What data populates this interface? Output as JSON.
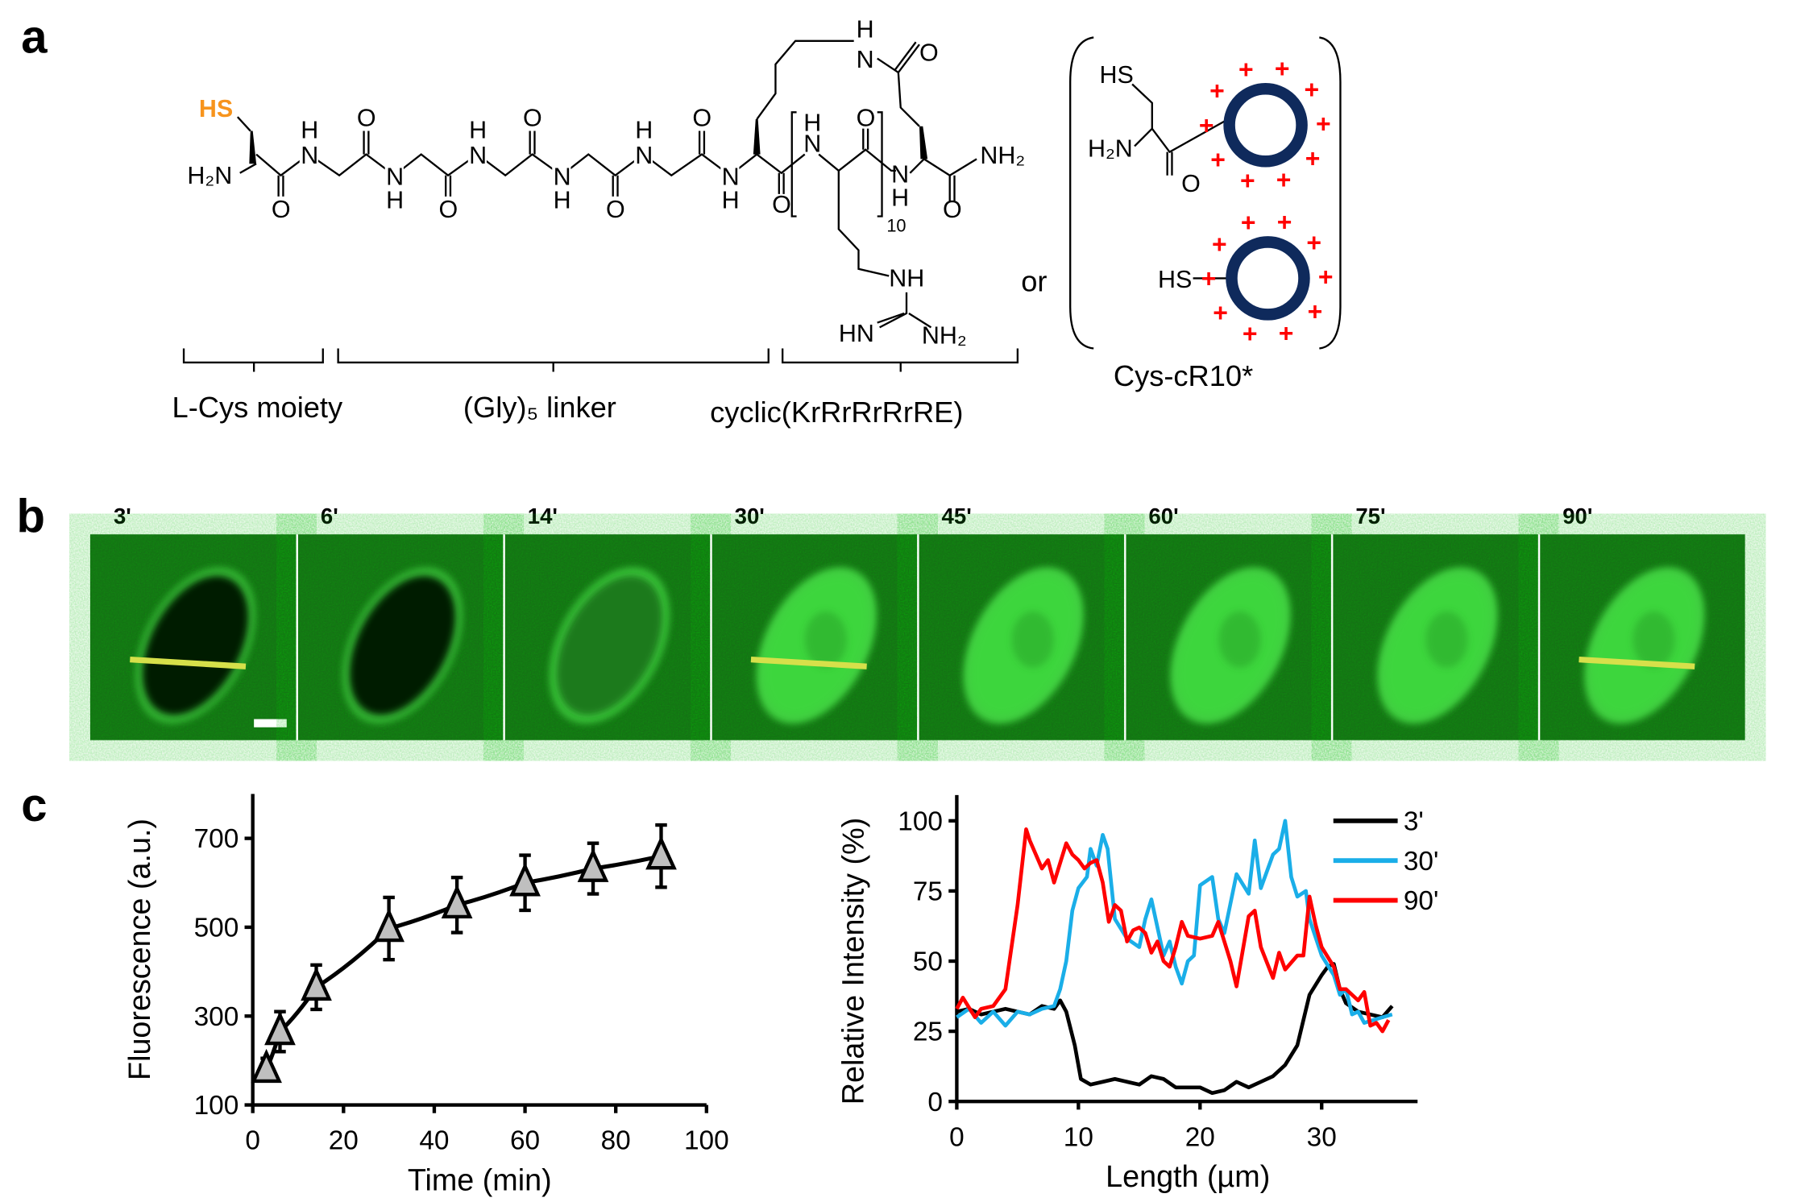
{
  "panels": {
    "a": "a",
    "b": "b",
    "c": "c"
  },
  "structure": {
    "thiol": "HS",
    "amine": "H₂N",
    "n": "N",
    "h": "H",
    "o": "O",
    "amide_terminal": "NH₂",
    "repeat": "10",
    "guanidine_nh": "NH",
    "guanidine_hn": "HN",
    "guanidine_nh2": "NH₂",
    "or": "or",
    "cys_cr10": "Cys-cR10*",
    "hs_alt": "HS",
    "h2n_alt": "H₂N",
    "o_alt": "O",
    "plus": "+",
    "segments": [
      "L-Cys moiety",
      "(Gly)₅ linker",
      "cyclic(KrRrRrRrRE)"
    ],
    "colors": {
      "thiol": "#f7941d",
      "ring": "#0f2a5c",
      "charge": "#ff0000"
    }
  },
  "microscopy": {
    "timepoints": [
      "3'",
      "6'",
      "14'",
      "30'",
      "45'",
      "60'",
      "75'",
      "90'"
    ],
    "cell_uptake": [
      0.0,
      0.05,
      0.3,
      0.7,
      0.8,
      0.85,
      0.9,
      0.9
    ],
    "line_profile_on": [
      "3'",
      "30'",
      "90'"
    ],
    "colors": {
      "background": "#176b17",
      "line": "#d6e04a",
      "scale_bar": "#ffffff"
    }
  },
  "chart_data": [
    {
      "type": "line",
      "title": "",
      "xlabel": "Time (min)",
      "ylabel": "Fluorescence (a.u.)",
      "xlim": [
        0,
        100
      ],
      "ylim": [
        100,
        800
      ],
      "xticks": [
        0,
        20,
        40,
        60,
        80,
        100
      ],
      "yticks": [
        100,
        300,
        500,
        700
      ],
      "grid": false,
      "series": [
        {
          "name": "fluorescence",
          "marker": "triangle",
          "x": [
            3,
            6,
            14,
            30,
            45,
            60,
            75,
            90
          ],
          "y": [
            180,
            265,
            365,
            497,
            550,
            600,
            632,
            660
          ],
          "error": [
            25,
            45,
            50,
            70,
            62,
            62,
            57,
            70
          ],
          "color": "#000000",
          "marker_fill": "#bfbfbf"
        }
      ]
    },
    {
      "type": "line",
      "title": "",
      "xlabel": "Length (µm)",
      "ylabel": "Relative Intensity (%)",
      "xlim": [
        0,
        38
      ],
      "ylim": [
        0,
        108
      ],
      "xticks": [
        0,
        10,
        20,
        30
      ],
      "yticks": [
        0,
        25,
        50,
        75,
        100
      ],
      "grid": false,
      "legend": "top-right",
      "series": [
        {
          "name": "3'",
          "color": "#000000",
          "points": [
            [
              0,
              32
            ],
            [
              1,
              33
            ],
            [
              2,
              31
            ],
            [
              3,
              32
            ],
            [
              4,
              33
            ],
            [
              5,
              32
            ],
            [
              6,
              31
            ],
            [
              7,
              34
            ],
            [
              8,
              33
            ],
            [
              8.5,
              36
            ],
            [
              9,
              32
            ],
            [
              9.7,
              20
            ],
            [
              10.2,
              8
            ],
            [
              11,
              6
            ],
            [
              12,
              7
            ],
            [
              13,
              8
            ],
            [
              14,
              7
            ],
            [
              15,
              6
            ],
            [
              16,
              9
            ],
            [
              17,
              8
            ],
            [
              18,
              5
            ],
            [
              19,
              5
            ],
            [
              20,
              5
            ],
            [
              21,
              3
            ],
            [
              22,
              4
            ],
            [
              23,
              7
            ],
            [
              24,
              5
            ],
            [
              25,
              7
            ],
            [
              26,
              9
            ],
            [
              27,
              13
            ],
            [
              28,
              20
            ],
            [
              29,
              38
            ],
            [
              30,
              45
            ],
            [
              30.5,
              48
            ],
            [
              31,
              49
            ],
            [
              31.5,
              40
            ],
            [
              32,
              35
            ],
            [
              33,
              32
            ],
            [
              34,
              31
            ],
            [
              35,
              30
            ],
            [
              35.8,
              34
            ]
          ]
        },
        {
          "name": "30'",
          "color": "#1aaee8",
          "points": [
            [
              0,
              30
            ],
            [
              1,
              33
            ],
            [
              2,
              28
            ],
            [
              3,
              32
            ],
            [
              4,
              27
            ],
            [
              5,
              32
            ],
            [
              6,
              31
            ],
            [
              7,
              33
            ],
            [
              8,
              34
            ],
            [
              8.5,
              40
            ],
            [
              9,
              50
            ],
            [
              9.5,
              68
            ],
            [
              10,
              76
            ],
            [
              10.7,
              80
            ],
            [
              11,
              90
            ],
            [
              11.5,
              84
            ],
            [
              12,
              95
            ],
            [
              12.4,
              90
            ],
            [
              13,
              65
            ],
            [
              14,
              58
            ],
            [
              15,
              55
            ],
            [
              15.5,
              65
            ],
            [
              16,
              72
            ],
            [
              17,
              52
            ],
            [
              17.5,
              57
            ],
            [
              18,
              48
            ],
            [
              18.5,
              42
            ],
            [
              19,
              50
            ],
            [
              19.5,
              52
            ],
            [
              20,
              77
            ],
            [
              21,
              80
            ],
            [
              21.5,
              65
            ],
            [
              22,
              60
            ],
            [
              23,
              81
            ],
            [
              24,
              74
            ],
            [
              24.5,
              93
            ],
            [
              25,
              76
            ],
            [
              26,
              88
            ],
            [
              26.5,
              90
            ],
            [
              27,
              100
            ],
            [
              27.5,
              80
            ],
            [
              28,
              73
            ],
            [
              28.7,
              75
            ],
            [
              29,
              65
            ],
            [
              30,
              52
            ],
            [
              31,
              45
            ],
            [
              31.5,
              38
            ],
            [
              32,
              40
            ],
            [
              32.5,
              31
            ],
            [
              33,
              32
            ],
            [
              33.5,
              28
            ],
            [
              35,
              30
            ],
            [
              35.8,
              31
            ]
          ]
        },
        {
          "name": "90'",
          "color": "#ff0000",
          "points": [
            [
              0,
              33
            ],
            [
              0.5,
              37
            ],
            [
              1.5,
              30
            ],
            [
              2,
              33
            ],
            [
              3,
              34
            ],
            [
              4,
              40
            ],
            [
              5,
              70
            ],
            [
              5.7,
              97
            ],
            [
              6,
              93
            ],
            [
              7,
              83
            ],
            [
              7.5,
              86
            ],
            [
              8,
              78
            ],
            [
              9,
              92
            ],
            [
              9.5,
              88
            ],
            [
              10,
              86
            ],
            [
              10.5,
              83
            ],
            [
              11,
              85
            ],
            [
              11.5,
              86
            ],
            [
              12,
              78
            ],
            [
              12.5,
              64
            ],
            [
              13,
              70
            ],
            [
              13.5,
              68
            ],
            [
              14,
              57
            ],
            [
              14.5,
              61
            ],
            [
              15,
              62
            ],
            [
              15.5,
              60
            ],
            [
              16,
              53
            ],
            [
              16.5,
              57
            ],
            [
              17,
              50
            ],
            [
              17.5,
              48
            ],
            [
              18,
              55
            ],
            [
              18.5,
              64
            ],
            [
              19,
              59
            ],
            [
              20,
              58
            ],
            [
              21,
              59
            ],
            [
              21.5,
              64
            ],
            [
              22,
              57
            ],
            [
              22.5,
              50
            ],
            [
              23,
              41
            ],
            [
              24,
              66
            ],
            [
              24.5,
              68
            ],
            [
              25,
              55
            ],
            [
              26,
              44
            ],
            [
              26.5,
              53
            ],
            [
              27,
              47
            ],
            [
              28,
              52
            ],
            [
              28.5,
              52
            ],
            [
              29,
              73
            ],
            [
              29.5,
              63
            ],
            [
              30,
              55
            ],
            [
              31,
              48
            ],
            [
              31.5,
              40
            ],
            [
              32,
              40
            ],
            [
              33,
              36
            ],
            [
              33.5,
              39
            ],
            [
              34,
              27
            ],
            [
              34.5,
              28
            ],
            [
              35,
              25
            ],
            [
              35.5,
              29
            ]
          ]
        }
      ]
    }
  ]
}
